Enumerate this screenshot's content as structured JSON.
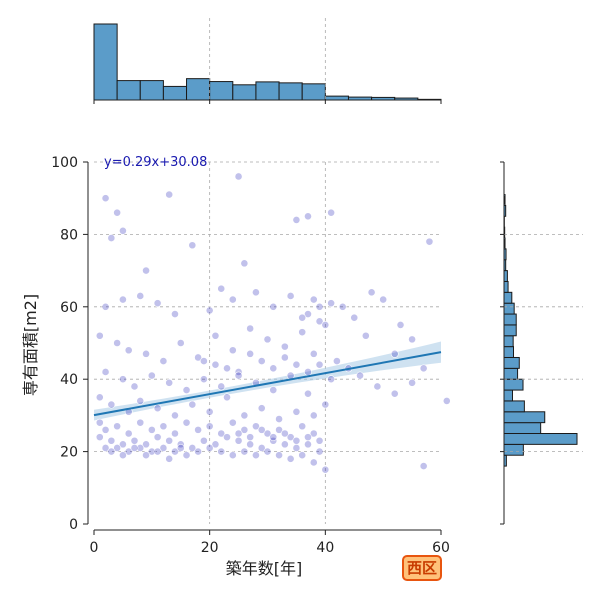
{
  "badge_label": "西区",
  "colors": {
    "point": "#2020b8",
    "trend": "#1f77b4",
    "band": "#a8cbe6",
    "hist": "#5b9cc9",
    "grid": "#a9a9a9",
    "badge_border": "#e8550f",
    "badge_fill": "#ffc27a"
  },
  "chart_data": [
    {
      "type": "scatter",
      "xlabel": "築年数[年]",
      "ylabel": "専有面積[m2]",
      "xlim": [
        0,
        60
      ],
      "ylim": [
        0,
        100
      ],
      "xticks": [
        0,
        20,
        40,
        60
      ],
      "yticks": [
        0,
        20,
        40,
        60,
        80,
        100
      ],
      "grid": true,
      "regression": {
        "equation": "y=0.29x+30.08",
        "slope": 0.29,
        "intercept": 30.08,
        "x_range": [
          0,
          60
        ]
      },
      "points": [
        [
          2,
          90
        ],
        [
          4,
          86
        ],
        [
          13,
          91
        ],
        [
          25,
          96
        ],
        [
          17,
          77
        ],
        [
          9,
          70
        ],
        [
          22,
          65
        ],
        [
          26,
          72
        ],
        [
          35,
          84
        ],
        [
          37,
          85
        ],
        [
          41,
          86
        ],
        [
          3,
          79
        ],
        [
          5,
          81
        ],
        [
          48,
          64
        ],
        [
          58,
          78
        ],
        [
          53,
          55
        ],
        [
          55,
          51
        ],
        [
          52,
          47
        ],
        [
          57,
          43
        ],
        [
          61,
          34
        ],
        [
          57,
          16
        ],
        [
          50,
          62
        ],
        [
          2,
          60
        ],
        [
          5,
          62
        ],
        [
          8,
          63
        ],
        [
          11,
          61
        ],
        [
          14,
          58
        ],
        [
          20,
          59
        ],
        [
          24,
          62
        ],
        [
          28,
          64
        ],
        [
          31,
          60
        ],
        [
          34,
          63
        ],
        [
          37,
          58
        ],
        [
          39,
          56
        ],
        [
          1,
          52
        ],
        [
          4,
          50
        ],
        [
          6,
          48
        ],
        [
          9,
          47
        ],
        [
          12,
          45
        ],
        [
          15,
          50
        ],
        [
          18,
          46
        ],
        [
          21,
          52
        ],
        [
          24,
          48
        ],
        [
          27,
          54
        ],
        [
          30,
          51
        ],
        [
          33,
          49
        ],
        [
          36,
          53
        ],
        [
          38,
          47
        ],
        [
          40,
          55
        ],
        [
          42,
          45
        ],
        [
          44,
          43
        ],
        [
          46,
          41
        ],
        [
          49,
          38
        ],
        [
          52,
          36
        ],
        [
          55,
          39
        ],
        [
          47,
          52
        ],
        [
          43,
          60
        ],
        [
          45,
          57
        ],
        [
          41,
          61
        ],
        [
          2,
          42
        ],
        [
          5,
          40
        ],
        [
          7,
          38
        ],
        [
          10,
          41
        ],
        [
          13,
          39
        ],
        [
          16,
          37
        ],
        [
          19,
          40
        ],
        [
          22,
          38
        ],
        [
          25,
          42
        ],
        [
          28,
          39
        ],
        [
          31,
          37
        ],
        [
          34,
          41
        ],
        [
          37,
          36
        ],
        [
          40,
          33
        ],
        [
          1,
          35
        ],
        [
          3,
          33
        ],
        [
          6,
          31
        ],
        [
          8,
          34
        ],
        [
          11,
          32
        ],
        [
          14,
          30
        ],
        [
          17,
          33
        ],
        [
          20,
          31
        ],
        [
          23,
          35
        ],
        [
          26,
          30
        ],
        [
          29,
          32
        ],
        [
          32,
          29
        ],
        [
          35,
          31
        ],
        [
          38,
          30
        ],
        [
          1,
          28
        ],
        [
          2,
          26
        ],
        [
          4,
          27
        ],
        [
          6,
          25
        ],
        [
          8,
          28
        ],
        [
          10,
          26
        ],
        [
          12,
          27
        ],
        [
          14,
          25
        ],
        [
          16,
          28
        ],
        [
          18,
          26
        ],
        [
          20,
          27
        ],
        [
          22,
          25
        ],
        [
          24,
          28
        ],
        [
          26,
          26
        ],
        [
          28,
          27
        ],
        [
          30,
          25
        ],
        [
          32,
          26
        ],
        [
          34,
          24
        ],
        [
          36,
          27
        ],
        [
          38,
          25
        ],
        [
          1,
          24
        ],
        [
          3,
          23
        ],
        [
          5,
          22
        ],
        [
          7,
          23
        ],
        [
          9,
          22
        ],
        [
          11,
          24
        ],
        [
          13,
          23
        ],
        [
          15,
          22
        ],
        [
          17,
          21
        ],
        [
          19,
          23
        ],
        [
          21,
          22
        ],
        [
          23,
          24
        ],
        [
          25,
          23
        ],
        [
          27,
          22
        ],
        [
          29,
          21
        ],
        [
          31,
          23
        ],
        [
          33,
          22
        ],
        [
          35,
          21
        ],
        [
          37,
          22
        ],
        [
          39,
          20
        ],
        [
          2,
          21
        ],
        [
          4,
          21
        ],
        [
          6,
          20
        ],
        [
          8,
          21
        ],
        [
          10,
          20
        ],
        [
          12,
          21
        ],
        [
          14,
          20
        ],
        [
          16,
          19
        ],
        [
          18,
          20
        ],
        [
          20,
          21
        ],
        [
          22,
          20
        ],
        [
          24,
          19
        ],
        [
          26,
          20
        ],
        [
          28,
          19
        ],
        [
          30,
          20
        ],
        [
          32,
          19
        ],
        [
          34,
          18
        ],
        [
          36,
          19
        ],
        [
          38,
          17
        ],
        [
          40,
          15
        ],
        [
          3,
          20
        ],
        [
          5,
          19
        ],
        [
          7,
          21
        ],
        [
          9,
          19
        ],
        [
          11,
          20
        ],
        [
          13,
          18
        ],
        [
          15,
          21
        ],
        [
          25,
          25
        ],
        [
          27,
          24
        ],
        [
          29,
          26
        ],
        [
          31,
          24
        ],
        [
          33,
          25
        ],
        [
          35,
          23
        ],
        [
          37,
          24
        ],
        [
          39,
          23
        ],
        [
          19,
          45
        ],
        [
          21,
          44
        ],
        [
          23,
          43
        ],
        [
          25,
          41
        ],
        [
          27,
          47
        ],
        [
          29,
          45
        ],
        [
          31,
          43
        ],
        [
          33,
          46
        ],
        [
          35,
          44
        ],
        [
          37,
          42
        ],
        [
          39,
          44
        ],
        [
          41,
          40
        ],
        [
          38,
          62
        ],
        [
          36,
          57
        ],
        [
          39,
          60
        ]
      ]
    },
    {
      "type": "histogram",
      "orientation": "vertical",
      "variable": "築年数[年]",
      "bins": [
        0,
        4,
        8,
        12,
        16,
        20,
        24,
        28,
        32,
        36,
        40,
        44,
        48,
        52,
        56,
        60
      ],
      "counts": [
        235,
        60,
        60,
        42,
        66,
        57,
        47,
        56,
        53,
        50,
        12,
        9,
        8,
        6,
        2
      ]
    },
    {
      "type": "histogram",
      "orientation": "horizontal",
      "variable": "専有面積[m2]",
      "bins": [
        16,
        19,
        22,
        25,
        28,
        31,
        34,
        37,
        40,
        43,
        46,
        49,
        52,
        55,
        58,
        61,
        64,
        67,
        70,
        73,
        76,
        79,
        82,
        85,
        88,
        91
      ],
      "counts": [
        7,
        57,
        215,
        108,
        120,
        60,
        25,
        56,
        40,
        45,
        28,
        27,
        36,
        36,
        30,
        23,
        12,
        10,
        5,
        6,
        3,
        2,
        1,
        5,
        3
      ]
    }
  ]
}
